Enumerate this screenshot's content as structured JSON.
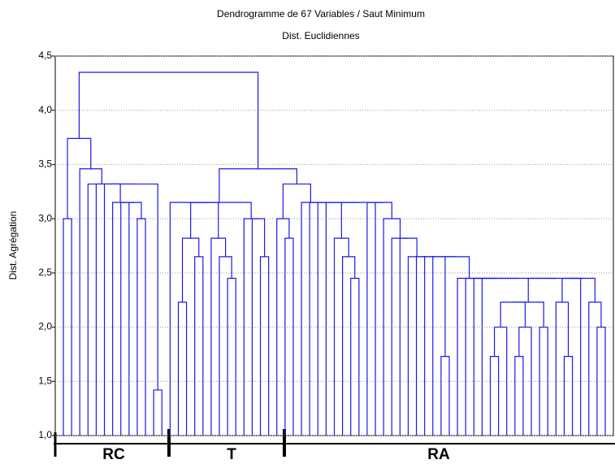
{
  "chart_data": {
    "type": "dendrogram",
    "title": "Dendrogramme de 67 Variables / Saut Minimum",
    "subtitle": "Dist. Euclidiennes",
    "y_label": "Dist. Agrégation",
    "color": "#1a1ae6",
    "grid": true,
    "ylim": [
      1.0,
      4.5
    ],
    "yticks": [
      {
        "value": 1.0,
        "label": "1,0"
      },
      {
        "value": 1.5,
        "label": "1,5"
      },
      {
        "value": 2.0,
        "label": "2,0"
      },
      {
        "value": 2.5,
        "label": "2,5"
      },
      {
        "value": 3.0,
        "label": "3,0"
      },
      {
        "value": 3.5,
        "label": "3,5"
      },
      {
        "value": 4.0,
        "label": "4,0"
      },
      {
        "value": 4.5,
        "label": "4,5"
      }
    ],
    "leaves": 67,
    "merges": [
      [
        0,
        1,
        3.0
      ],
      [
        11,
        12,
        1.42
      ],
      [
        9,
        10,
        3.0
      ],
      [
        8,
        69,
        3.15
      ],
      [
        7,
        70,
        3.15
      ],
      [
        6,
        71,
        3.15
      ],
      [
        5,
        72,
        3.32
      ],
      [
        73,
        68,
        3.32
      ],
      [
        4,
        74,
        3.32
      ],
      [
        3,
        75,
        3.32
      ],
      [
        2,
        76,
        3.46
      ],
      [
        67,
        77,
        3.74
      ],
      [
        14,
        15,
        2.23
      ],
      [
        16,
        17,
        2.65
      ],
      [
        79,
        80,
        2.82
      ],
      [
        20,
        21,
        2.45
      ],
      [
        19,
        82,
        2.65
      ],
      [
        18,
        83,
        2.82
      ],
      [
        81,
        84,
        3.15
      ],
      [
        13,
        85,
        3.15
      ],
      [
        24,
        25,
        2.65
      ],
      [
        23,
        87,
        3.0
      ],
      [
        22,
        88,
        3.0
      ],
      [
        86,
        89,
        3.15
      ],
      [
        27,
        28,
        2.82
      ],
      [
        26,
        91,
        3.0
      ],
      [
        35,
        36,
        2.45
      ],
      [
        34,
        93,
        2.65
      ],
      [
        33,
        94,
        2.82
      ],
      [
        46,
        47,
        1.73
      ],
      [
        52,
        53,
        1.73
      ],
      [
        97,
        54,
        2.0
      ],
      [
        55,
        56,
        1.73
      ],
      [
        99,
        57,
        2.0
      ],
      [
        58,
        59,
        2.0
      ],
      [
        98,
        100,
        2.23
      ],
      [
        102,
        101,
        2.23
      ],
      [
        61,
        62,
        1.73
      ],
      [
        60,
        104,
        2.23
      ],
      [
        65,
        66,
        2.0
      ],
      [
        64,
        106,
        2.23
      ],
      [
        105,
        63,
        2.45
      ],
      [
        108,
        107,
        2.45
      ],
      [
        103,
        109,
        2.45
      ],
      [
        51,
        110,
        2.45
      ],
      [
        50,
        111,
        2.45
      ],
      [
        49,
        112,
        2.45
      ],
      [
        48,
        113,
        2.45
      ],
      [
        96,
        114,
        2.65
      ],
      [
        45,
        115,
        2.65
      ],
      [
        44,
        116,
        2.65
      ],
      [
        43,
        117,
        2.65
      ],
      [
        42,
        118,
        2.65
      ],
      [
        41,
        119,
        2.82
      ],
      [
        40,
        120,
        2.82
      ],
      [
        39,
        121,
        3.0
      ],
      [
        38,
        122,
        3.15
      ],
      [
        37,
        123,
        3.15
      ],
      [
        95,
        124,
        3.15
      ],
      [
        32,
        125,
        3.15
      ],
      [
        31,
        126,
        3.15
      ],
      [
        30,
        127,
        3.15
      ],
      [
        29,
        128,
        3.15
      ],
      [
        92,
        129,
        3.32
      ],
      [
        90,
        130,
        3.46
      ],
      [
        78,
        131,
        4.35
      ]
    ],
    "groups": [
      "RC",
      "T",
      "RA"
    ]
  }
}
